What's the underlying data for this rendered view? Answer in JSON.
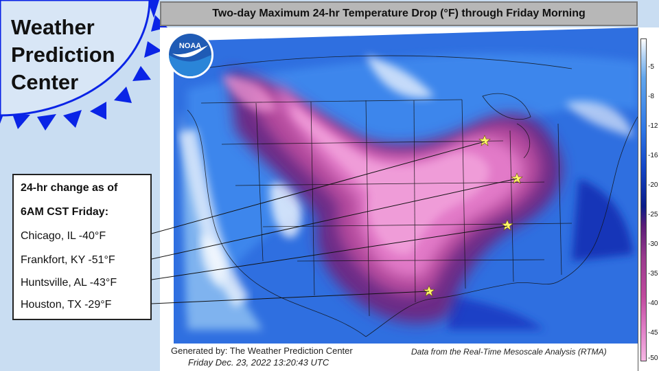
{
  "brand": {
    "title_lines": [
      "Weather",
      "Prediction",
      "Center"
    ],
    "badge_color": "#0a24e6",
    "badge_fill": "#d8e6f6",
    "logo_text": "NOAA"
  },
  "map": {
    "title": "Two-day Maximum 24-hr Temperature Drop (°F) through Friday Morning",
    "footer": {
      "generated_by": "Generated by: The Weather Prediction Center",
      "generated_at": "Friday Dec. 23, 2022  13:20:43 UTC",
      "source": "Data from the Real-Time Mesoscale Analysis (RTMA)"
    },
    "markers": [
      {
        "city": "Chicago, IL",
        "icon": "star-icon",
        "color": "#fff56a"
      },
      {
        "city": "Frankfort, KY",
        "icon": "star-icon",
        "color": "#fff56a"
      },
      {
        "city": "Huntsville, AL",
        "icon": "star-icon",
        "color": "#fff56a"
      },
      {
        "city": "Houston, TX",
        "icon": "star-icon",
        "color": "#fff56a"
      }
    ]
  },
  "legend": {
    "ticks": [
      "-5",
      "-8",
      "-12",
      "-16",
      "-20",
      "-25",
      "-30",
      "-35",
      "-40",
      "-45",
      "-50"
    ],
    "colors": [
      "#ffffff",
      "#b8d6f5",
      "#62a6ec",
      "#2f78e6",
      "#1446c8",
      "#0a1c8a",
      "#5a1c78",
      "#9a3b8e",
      "#c04b9e",
      "#e07ec6",
      "#f6b8e4"
    ]
  },
  "info_box": {
    "heading_1": "24-hr change as of",
    "heading_2": "6AM CST Friday:",
    "rows": [
      {
        "city": "Chicago, IL",
        "change": "-40°F",
        "text": "Chicago, IL -40°F"
      },
      {
        "city": "Frankfort, KY",
        "change": "-51°F",
        "text": "Frankfort, KY -51°F"
      },
      {
        "city": "Huntsville, AL",
        "change": "-43°F",
        "text": "Huntsville, AL -43°F"
      },
      {
        "city": "Houston, TX",
        "change": "-29°F",
        "text": "Houston, TX -29°F"
      }
    ]
  }
}
